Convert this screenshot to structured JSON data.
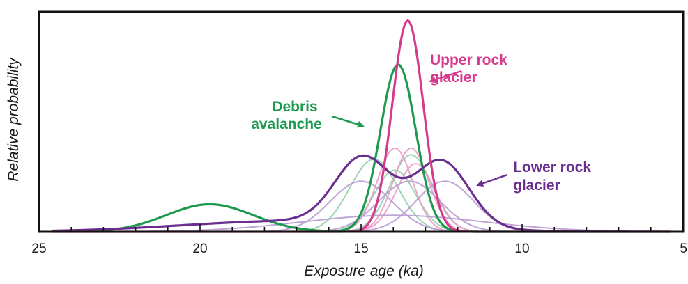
{
  "chart_data": {
    "type": "line",
    "xlabel": "Exposure age (ka)",
    "ylabel": "Relative probability",
    "xlim": [
      25,
      5
    ],
    "x_reversed": true,
    "ylim": [
      0,
      1.0
    ],
    "x_ticks": [
      25,
      20,
      15,
      10,
      5
    ],
    "x_tick_labels": [
      "25",
      "20",
      "15",
      "10",
      "5"
    ],
    "grid": false,
    "legend": "none",
    "colors": {
      "debris": "#1e9a4f",
      "upper": "#d63a8c",
      "lower": "#6a2f8e",
      "debris_light": "#8fd0a8",
      "upper_light": "#eb9ac8",
      "lower_light": "#b79bd0"
    },
    "annotations": [
      {
        "lines": [
          "Upper rock",
          "glacier"
        ],
        "group": "upper"
      },
      {
        "lines": [
          "Debris",
          "avalanche"
        ],
        "group": "debris"
      },
      {
        "lines": [
          "Lower rock",
          "glacier"
        ],
        "group": "lower"
      }
    ],
    "series": [
      {
        "group": "debris",
        "kind": "summary",
        "components": [
          {
            "mu": 13.85,
            "sigma": 0.55,
            "amp": 0.76
          },
          {
            "mu": 19.7,
            "sigma": 1.35,
            "amp": 0.125
          }
        ]
      },
      {
        "group": "upper",
        "kind": "summary",
        "components": [
          {
            "mu": 13.55,
            "sigma": 0.48,
            "amp": 0.96
          }
        ]
      },
      {
        "group": "lower",
        "kind": "summary",
        "components": [
          {
            "mu": 14.95,
            "sigma": 0.85,
            "amp": 0.3
          },
          {
            "mu": 12.5,
            "sigma": 0.85,
            "amp": 0.3
          },
          {
            "mu": 17.0,
            "sigma": 3.5,
            "amp": 0.05
          }
        ]
      },
      {
        "group": "debris",
        "kind": "individual",
        "components": [
          {
            "mu": 14.6,
            "sigma": 0.75,
            "amp": 0.33
          }
        ]
      },
      {
        "group": "debris",
        "kind": "individual",
        "components": [
          {
            "mu": 13.95,
            "sigma": 0.65,
            "amp": 0.28
          }
        ]
      },
      {
        "group": "debris",
        "kind": "individual",
        "components": [
          {
            "mu": 13.45,
            "sigma": 0.65,
            "amp": 0.35
          }
        ]
      },
      {
        "group": "upper",
        "kind": "individual",
        "components": [
          {
            "mu": 13.95,
            "sigma": 0.55,
            "amp": 0.38
          }
        ]
      },
      {
        "group": "upper",
        "kind": "individual",
        "components": [
          {
            "mu": 13.45,
            "sigma": 0.55,
            "amp": 0.38
          }
        ]
      },
      {
        "group": "upper",
        "kind": "individual",
        "components": [
          {
            "mu": 13.3,
            "sigma": 0.6,
            "amp": 0.31
          }
        ]
      },
      {
        "group": "lower",
        "kind": "individual",
        "components": [
          {
            "mu": 15.0,
            "sigma": 0.95,
            "amp": 0.23
          }
        ]
      },
      {
        "group": "lower",
        "kind": "individual",
        "components": [
          {
            "mu": 13.5,
            "sigma": 0.95,
            "amp": 0.23
          }
        ]
      },
      {
        "group": "lower",
        "kind": "individual",
        "components": [
          {
            "mu": 12.4,
            "sigma": 0.9,
            "amp": 0.23
          }
        ]
      },
      {
        "group": "lower",
        "kind": "individual",
        "components": [
          {
            "mu": 14.0,
            "sigma": 2.8,
            "amp": 0.075
          }
        ]
      }
    ]
  }
}
